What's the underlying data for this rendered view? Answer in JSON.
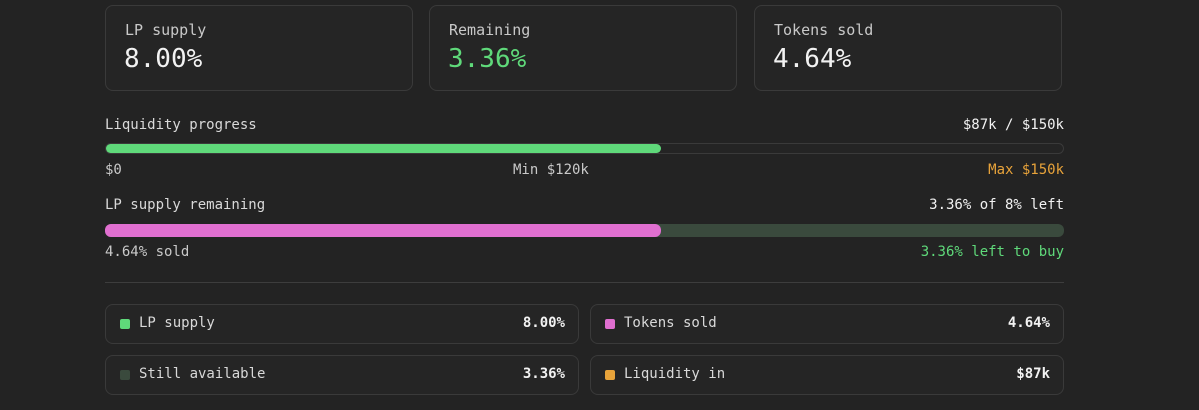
{
  "stats": [
    {
      "label": "LP supply",
      "value": "8.00%",
      "color": "#f2f2f2"
    },
    {
      "label": "Remaining",
      "value": "3.36%",
      "color": "#5fd97a"
    },
    {
      "label": "Tokens sold",
      "value": "4.64%",
      "color": "#f2f2f2"
    }
  ],
  "liquidity": {
    "label": "Liquidity progress",
    "summary": "$87k / $150k",
    "progress_fraction": 0.58,
    "start_label": "$0",
    "min_label": "Min $120k",
    "max_label": "Max $150k",
    "fill_color": "#5fd97a",
    "max_color": "#e8a33a"
  },
  "lp_remaining": {
    "label": "LP supply remaining",
    "summary": "3.36% of 8% left",
    "sold_fraction": 0.58,
    "sold_label": "4.64% sold",
    "left_label": "3.36% left to buy",
    "sold_color": "#e06fd0",
    "left_color": "#3a4a3d",
    "left_text_color": "#5fd97a"
  },
  "legend": [
    {
      "name": "LP supply",
      "value": "8.00%",
      "color": "#5fd97a"
    },
    {
      "name": "Tokens sold",
      "value": "4.64%",
      "color": "#e06fd0"
    },
    {
      "name": "Still available",
      "value": "3.36%",
      "color": "#3a4a3d"
    },
    {
      "name": "Liquidity in",
      "value": "$87k",
      "color": "#e8a33a"
    }
  ]
}
